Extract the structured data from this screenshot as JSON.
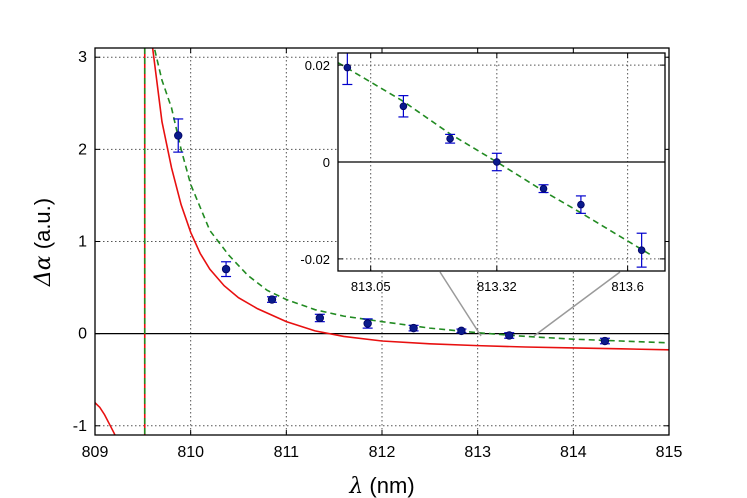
{
  "chart_data": [
    {
      "type": "line",
      "title": "",
      "xlabel_symbol": "λ",
      "xlabel_unit": " (nm)",
      "ylabel_symbol": "Δα",
      "ylabel_unit": " (a.u.)",
      "xlim": [
        809,
        815
      ],
      "ylim": [
        -1.1,
        3.1
      ],
      "xticks": [
        "809",
        "810",
        "811",
        "812",
        "813",
        "814",
        "815"
      ],
      "yticks": [
        "-1",
        "0",
        "1",
        "2",
        "3"
      ],
      "xtick_values": [
        809,
        810,
        811,
        812,
        813,
        814,
        815
      ],
      "ytick_values": [
        -1,
        0,
        1,
        2,
        3
      ],
      "grid": true,
      "asymptote_x": 809.52,
      "series": [
        {
          "style": "data-errorbar",
          "color": "#0000cc",
          "x": [
            809.87,
            810.37,
            810.85,
            811.35,
            811.85,
            812.33,
            812.83,
            813.33,
            814.33
          ],
          "y": [
            2.15,
            0.7,
            0.37,
            0.17,
            0.11,
            0.06,
            0.03,
            -0.02,
            -0.08
          ],
          "yerr": [
            0.18,
            0.08,
            0.03,
            0.04,
            0.05,
            0.03,
            0.02,
            0.03,
            0.03
          ]
        },
        {
          "style": "dashed-fit",
          "color": "#228b22",
          "x": [
            809.52,
            809.62,
            809.7,
            809.8,
            809.9,
            810.0,
            810.2,
            810.4,
            810.6,
            810.8,
            811.0,
            811.3,
            811.6,
            812.0,
            812.5,
            813.0,
            813.5,
            814.0,
            814.5,
            815.0
          ],
          "y": [
            3.5,
            3.1,
            2.75,
            2.45,
            2.0,
            1.62,
            1.12,
            0.85,
            0.63,
            0.47,
            0.37,
            0.26,
            0.19,
            0.13,
            0.06,
            0.01,
            -0.03,
            -0.06,
            -0.08,
            -0.1
          ]
        },
        {
          "style": "solid-model",
          "color": "#e81010",
          "x": [
            809.55,
            809.6,
            809.7,
            809.8,
            809.9,
            810.0,
            810.1,
            810.2,
            810.35,
            810.5,
            810.7,
            811.0,
            811.3,
            811.6,
            812.0,
            812.5,
            813.0,
            813.5,
            814.0,
            814.5,
            815.0
          ],
          "y": [
            3.5,
            3.12,
            2.3,
            1.8,
            1.4,
            1.1,
            0.87,
            0.7,
            0.52,
            0.39,
            0.27,
            0.13,
            0.03,
            -0.03,
            -0.08,
            -0.11,
            -0.13,
            -0.145,
            -0.155,
            -0.165,
            -0.175
          ]
        },
        {
          "style": "solid-model-left",
          "color": "#e81010",
          "x": [
            809.0,
            809.05,
            809.1,
            809.15,
            809.2,
            809.25
          ],
          "y": [
            -0.75,
            -0.8,
            -0.88,
            -0.98,
            -1.08,
            -1.2
          ]
        }
      ]
    },
    {
      "type": "line",
      "title": "",
      "xlim": [
        812.98,
        813.68
      ],
      "ylim": [
        -0.0225,
        0.0225
      ],
      "xticks": [
        "813.05",
        "813.32",
        "813.6"
      ],
      "xtick_values": [
        813.05,
        813.32,
        813.6
      ],
      "yticks": [
        "0.02",
        "0",
        "-0.02"
      ],
      "ytick_values": [
        0.02,
        0,
        -0.02
      ],
      "grid": true,
      "series": [
        {
          "style": "data-errorbar",
          "color": "#0000cc",
          "x": [
            813.0,
            813.12,
            813.22,
            813.32,
            813.42,
            813.5,
            813.63
          ],
          "y": [
            0.0195,
            0.0115,
            0.0048,
            0.0,
            -0.0055,
            -0.0088,
            -0.0182
          ],
          "yerr": [
            0.0035,
            0.0022,
            0.0009,
            0.0018,
            0.0008,
            0.0018,
            0.0035
          ]
        },
        {
          "style": "dashed-fit",
          "color": "#228b22",
          "x": [
            812.98,
            813.12,
            813.22,
            813.32,
            813.42,
            813.5,
            813.65
          ],
          "y": [
            0.0205,
            0.0125,
            0.0058,
            0.0,
            -0.006,
            -0.0105,
            -0.0192
          ]
        }
      ]
    }
  ]
}
